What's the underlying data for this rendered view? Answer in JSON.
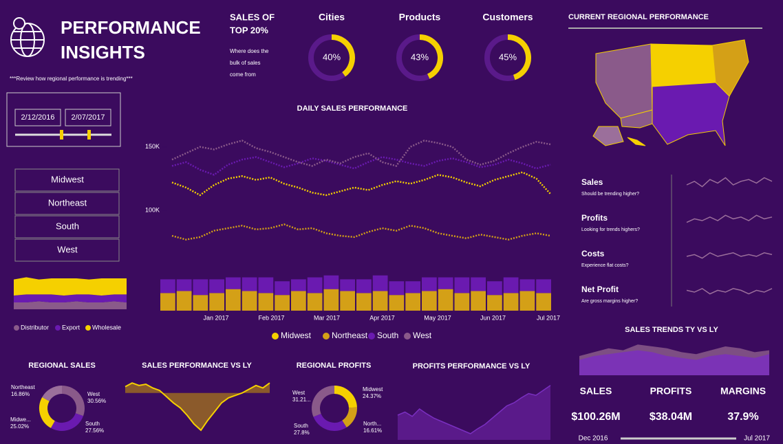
{
  "header": {
    "title_lines": [
      "PERFORMANCE",
      "INSIGHTS"
    ],
    "subtitle": "***Review how regional performance is trending***"
  },
  "date_slicer": {
    "start": "2/12/2016",
    "end": "2/07/2017"
  },
  "region_slicer": [
    "Midwest",
    "Northeast",
    "South",
    "West"
  ],
  "channel_chart": {
    "ylim": [
      0,
      30
    ],
    "series": [
      {
        "name": "Distributor",
        "color": "#8a5a8a",
        "values": [
          6,
          6,
          7,
          6,
          6,
          7,
          6,
          6,
          7,
          6
        ]
      },
      {
        "name": "Export",
        "color": "#6a1ab0",
        "values": [
          6,
          7,
          6,
          7,
          6,
          6,
          7,
          6,
          6,
          7
        ]
      },
      {
        "name": "Wholesale",
        "color": "#f5d000",
        "values": [
          14,
          15,
          13,
          14,
          15,
          14,
          13,
          15,
          14,
          14
        ]
      }
    ]
  },
  "top20": {
    "title_lines": [
      "SALES OF",
      "TOP 20%"
    ],
    "description_lines": [
      "Where does the",
      "bulk of sales",
      "come from"
    ],
    "gauges": [
      {
        "name": "Cities",
        "value": 40,
        "label": "40%"
      },
      {
        "name": "Products",
        "value": 43,
        "label": "43%"
      },
      {
        "name": "Customers",
        "value": 45,
        "label": "45%"
      }
    ]
  },
  "daily_sales": {
    "title": "DAILY SALES PERFORMANCE",
    "ylim": [
      60000,
      165000
    ],
    "yticks": [
      {
        "value": 100000,
        "label": "100K"
      },
      {
        "value": 150000,
        "label": "150K"
      }
    ],
    "x_labels": [
      "Jan 2017",
      "Feb 2017",
      "Mar 2017",
      "Apr 2017",
      "May 2017",
      "Jun 2017",
      "Jul 2017"
    ],
    "series": [
      {
        "name": "Midwest",
        "color": "#f5d000",
        "values": [
          122000,
          118000,
          112000,
          120000,
          125000,
          127000,
          124000,
          126000,
          121000,
          118000,
          114000,
          112000,
          115000,
          118000,
          116000,
          120000,
          123000,
          121000,
          124000,
          128000,
          126000,
          122000,
          119000,
          124000,
          127000,
          130000,
          125000,
          113000
        ]
      },
      {
        "name": "Northeast",
        "color": "#d4a017",
        "values": [
          80000,
          77000,
          79000,
          84000,
          86000,
          88000,
          85000,
          86000,
          89000,
          85000,
          86000,
          82000,
          80000,
          79000,
          83000,
          86000,
          84000,
          88000,
          86000,
          82000,
          80000,
          78000,
          81000,
          79000,
          77000,
          80000,
          82000,
          80000
        ]
      },
      {
        "name": "South",
        "color": "#6a1ab0",
        "values": [
          135000,
          138000,
          132000,
          128000,
          136000,
          140000,
          142000,
          138000,
          134000,
          137000,
          141000,
          139000,
          136000,
          133000,
          138000,
          142000,
          140000,
          137000,
          135000,
          139000,
          141000,
          138000,
          134000,
          136000,
          140000,
          137000,
          133000,
          136000
        ]
      },
      {
        "name": "West",
        "color": "#8a5a8a",
        "values": [
          140000,
          145000,
          150000,
          148000,
          152000,
          155000,
          149000,
          146000,
          142000,
          138000,
          135000,
          140000,
          137000,
          142000,
          145000,
          138000,
          135000,
          150000,
          155000,
          153000,
          150000,
          140000,
          136000,
          139000,
          145000,
          150000,
          154000,
          152000
        ]
      }
    ]
  },
  "bar_strip": {
    "ylim": [
      0,
      20
    ],
    "series": [
      {
        "color": "#d4a017",
        "values": [
          9,
          10,
          8,
          9,
          11,
          10,
          9,
          8,
          10,
          9,
          11,
          10,
          9,
          10,
          8,
          9,
          10,
          11,
          9,
          10,
          8,
          9,
          10,
          9
        ]
      },
      {
        "color": "#6a1ab0",
        "values": [
          7,
          6,
          8,
          7,
          6,
          7,
          8,
          7,
          6,
          8,
          7,
          6,
          7,
          8,
          7,
          6,
          7,
          6,
          8,
          7,
          7,
          8,
          6,
          7
        ]
      }
    ]
  },
  "regional_sales": {
    "title": "REGIONAL SALES",
    "slices": [
      {
        "name": "West",
        "value": 30.56,
        "label": "30.56%",
        "color": "#8a5a8a"
      },
      {
        "name": "South",
        "value": 27.56,
        "label": "27.56%",
        "color": "#6a1ab0"
      },
      {
        "name": "Midwe...",
        "value": 25.02,
        "label": "25.02%",
        "color": "#f5d000"
      },
      {
        "name": "Northeast",
        "value": 16.86,
        "label": "16.86%",
        "color": "#9b6f9b"
      }
    ]
  },
  "sales_vs_ly": {
    "title": "SALES PERFORMANCE VS LY",
    "ylim": [
      -35,
      12
    ],
    "values": [
      5,
      8,
      6,
      7,
      4,
      2,
      -3,
      -8,
      -12,
      -18,
      -25,
      -30,
      -22,
      -15,
      -8,
      -4,
      -2,
      0,
      3,
      6,
      4,
      8
    ]
  },
  "regional_profits": {
    "title": "REGIONAL PROFITS",
    "slices": [
      {
        "name": "Midwest",
        "value": 24.37,
        "label": "24.37%",
        "color": "#f5d000"
      },
      {
        "name": "North...",
        "value": 16.61,
        "label": "16.61%",
        "color": "#d4a017"
      },
      {
        "name": "South",
        "value": 27.8,
        "label": "27.8%",
        "color": "#6a1ab0"
      },
      {
        "name": "West",
        "value": 31.21,
        "label": "31.21...",
        "color": "#8a5a8a"
      }
    ]
  },
  "profits_vs_ly": {
    "title": "PROFITS PERFORMANCE VS LY",
    "ylim": [
      0,
      100
    ],
    "values": [
      40,
      45,
      38,
      50,
      42,
      35,
      30,
      25,
      20,
      15,
      10,
      18,
      25,
      35,
      45,
      55,
      60,
      68,
      75,
      72,
      80,
      88
    ]
  },
  "map": {
    "title": "CURRENT REGIONAL PERFORMANCE"
  },
  "kpis": [
    {
      "name": "Sales",
      "question": "Should be trending higher?",
      "values": [
        5,
        7,
        4,
        8,
        6,
        9,
        5,
        7,
        8,
        6,
        9,
        7
      ]
    },
    {
      "name": "Profits",
      "question": "Looking for trends highers?",
      "values": [
        4,
        6,
        5,
        7,
        5,
        8,
        6,
        7,
        5,
        8,
        6,
        7
      ]
    },
    {
      "name": "Costs",
      "question": "Experience flat costs?",
      "values": [
        5,
        6,
        4,
        7,
        5,
        6,
        7,
        5,
        6,
        5,
        7,
        6
      ]
    },
    {
      "name": "Net Profit",
      "question": "Are gross margins higher?",
      "values": [
        6,
        5,
        7,
        4,
        6,
        5,
        7,
        6,
        4,
        6,
        5,
        7
      ]
    }
  ],
  "sales_trends": {
    "title": "SALES TRENDS TY VS LY",
    "ylim": [
      0,
      20
    ],
    "series": [
      {
        "color": "#8a5a8a",
        "values": [
          10,
          12,
          14,
          13,
          16,
          15,
          14,
          12,
          11,
          13,
          15,
          14,
          12,
          13
        ]
      },
      {
        "color": "#7a2fc0",
        "values": [
          8,
          10,
          11,
          12,
          13,
          12,
          10,
          9,
          8,
          10,
          11,
          10,
          9,
          11
        ]
      }
    ]
  },
  "cards": [
    {
      "label": "SALES",
      "value": "$100.26M"
    },
    {
      "label": "PROFITS",
      "value": "$38.04M"
    },
    {
      "label": "MARGINS",
      "value": "37.9%"
    }
  ],
  "date_range": {
    "start": "Dec 2016",
    "end": "Jul 2017"
  }
}
